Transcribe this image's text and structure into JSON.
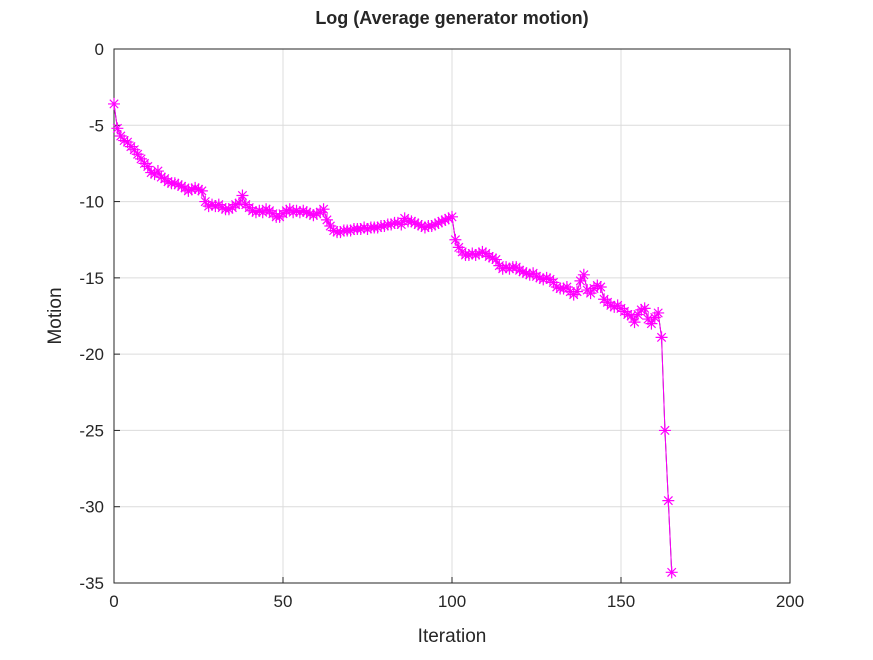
{
  "chart_data": {
    "type": "line",
    "title": "Log (Average generator motion)",
    "xlabel": "Iteration",
    "ylabel": "Motion",
    "xlim": [
      0,
      200
    ],
    "ylim": [
      -35,
      0
    ],
    "xticks": [
      0,
      50,
      100,
      150,
      200
    ],
    "yticks": [
      0,
      -5,
      -10,
      -15,
      -20,
      -25,
      -30,
      -35
    ],
    "grid": true,
    "series": [
      {
        "name": "Average generator motion",
        "color": "#ff00ff",
        "marker": "asterisk",
        "x_start": 0,
        "values": [
          -3.6,
          -5.2,
          -5.7,
          -6.0,
          -6.1,
          -6.4,
          -6.6,
          -6.9,
          -7.2,
          -7.5,
          -7.7,
          -8.1,
          -8.2,
          -8.0,
          -8.4,
          -8.5,
          -8.7,
          -8.8,
          -8.8,
          -8.9,
          -9.0,
          -9.1,
          -9.3,
          -9.2,
          -9.1,
          -9.2,
          -9.3,
          -10.0,
          -10.3,
          -10.2,
          -10.3,
          -10.2,
          -10.4,
          -10.5,
          -10.5,
          -10.4,
          -10.2,
          -10.1,
          -9.6,
          -10.2,
          -10.4,
          -10.6,
          -10.7,
          -10.6,
          -10.7,
          -10.5,
          -10.6,
          -10.8,
          -11.0,
          -11.0,
          -10.8,
          -10.6,
          -10.5,
          -10.7,
          -10.6,
          -10.7,
          -10.6,
          -10.7,
          -10.8,
          -10.9,
          -10.8,
          -10.7,
          -10.5,
          -11.2,
          -11.6,
          -11.9,
          -12.0,
          -12.0,
          -11.9,
          -11.9,
          -11.9,
          -11.8,
          -11.8,
          -11.8,
          -11.7,
          -11.8,
          -11.7,
          -11.7,
          -11.7,
          -11.6,
          -11.6,
          -11.5,
          -11.5,
          -11.4,
          -11.4,
          -11.5,
          -11.1,
          -11.3,
          -11.3,
          -11.4,
          -11.5,
          -11.6,
          -11.7,
          -11.6,
          -11.6,
          -11.5,
          -11.4,
          -11.3,
          -11.2,
          -11.1,
          -11.0,
          -12.5,
          -13.0,
          -13.3,
          -13.5,
          -13.5,
          -13.4,
          -13.5,
          -13.4,
          -13.3,
          -13.4,
          -13.6,
          -13.7,
          -13.8,
          -14.2,
          -14.4,
          -14.3,
          -14.4,
          -14.3,
          -14.3,
          -14.5,
          -14.6,
          -14.7,
          -14.8,
          -14.7,
          -14.9,
          -15.0,
          -15.1,
          -15.0,
          -15.1,
          -15.3,
          -15.6,
          -15.7,
          -15.7,
          -15.6,
          -15.9,
          -16.1,
          -15.9,
          -15.2,
          -14.8,
          -15.8,
          -16.0,
          -15.7,
          -15.5,
          -15.6,
          -16.4,
          -16.6,
          -16.8,
          -16.9,
          -16.8,
          -17.0,
          -17.2,
          -17.4,
          -17.5,
          -17.9,
          -17.4,
          -17.1,
          -17.0,
          -17.7,
          -18.0,
          -17.6,
          -17.3,
          -18.9,
          -25.0,
          -29.6,
          -34.3
        ]
      }
    ]
  }
}
